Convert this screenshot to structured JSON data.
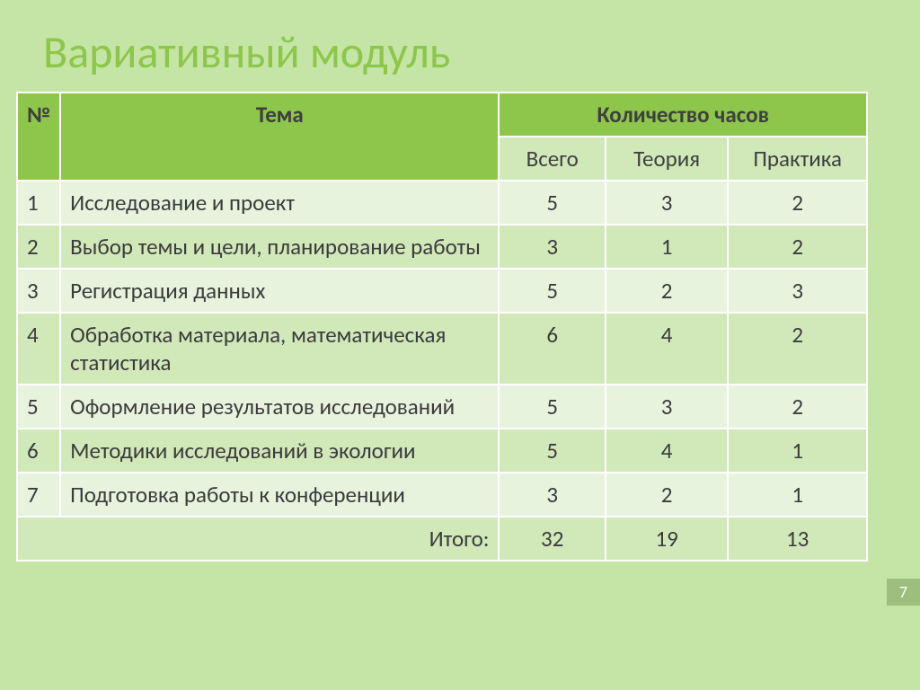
{
  "title": "Вариативный модуль",
  "pageNumber": "7",
  "header": {
    "num": "№",
    "topic": "Тема",
    "hours": "Количество часов",
    "total": "Всего",
    "theory": "Теория",
    "practice": "Практика"
  },
  "rows": [
    {
      "n": "1",
      "topic": "Исследование и проект",
      "total": "5",
      "theory": "3",
      "practice": "2"
    },
    {
      "n": "2",
      "topic": "Выбор темы и цели, планирование работы",
      "total": "3",
      "theory": "1",
      "practice": "2"
    },
    {
      "n": "3",
      "topic": "Регистрация данных",
      "total": "5",
      "theory": "2",
      "practice": "3"
    },
    {
      "n": "4",
      "topic": "Обработка материала, математическая статистика",
      "total": "6",
      "theory": "4",
      "practice": "2"
    },
    {
      "n": "5",
      "topic": "Оформление результатов исследований",
      "total": "5",
      "theory": "3",
      "practice": "2"
    },
    {
      "n": "6",
      "topic": "Методики исследований в экологии",
      "total": "5",
      "theory": "4",
      "practice": "1"
    },
    {
      "n": "7",
      "topic": "Подготовка работы к конференции",
      "total": "3",
      "theory": "2",
      "practice": "1"
    }
  ],
  "totals": {
    "label": "Итого:",
    "total": "32",
    "theory": "19",
    "practice": "13"
  },
  "style": {
    "background": "#c4e5a5",
    "headerBg": "#8dc64a",
    "rowAlt1": "#e8f3dd",
    "rowAlt2": "#d1e8b9",
    "titleColor": "#8dc64a"
  }
}
